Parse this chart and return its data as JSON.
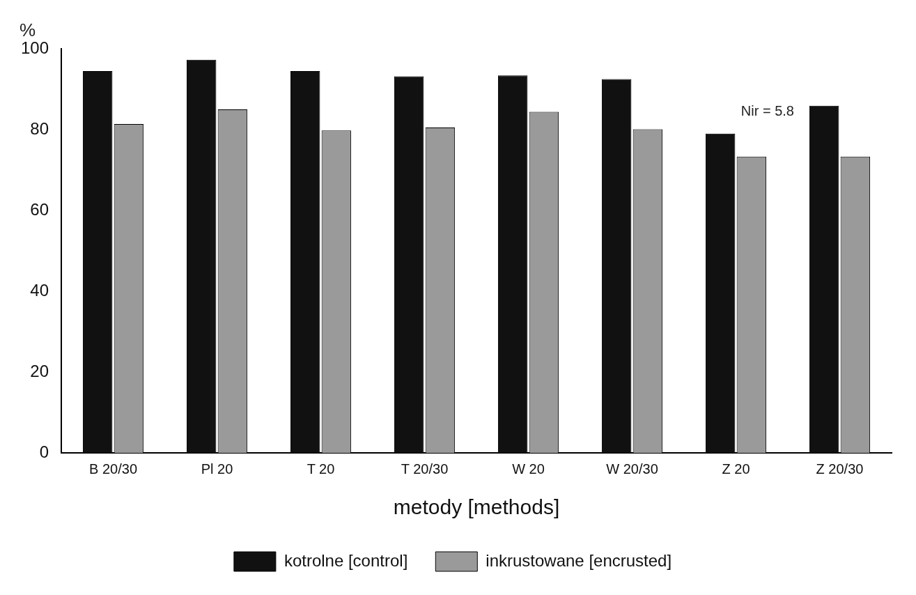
{
  "chart_data": {
    "type": "bar",
    "ylabel": "%",
    "xlabel": "metody [methods]",
    "categories": [
      "B 20/30",
      "Pl 20",
      "T 20",
      "T 20/30",
      "W 20",
      "W 20/30",
      "Z 20",
      "Z 20/30"
    ],
    "series": [
      {
        "name": "kotrolne [control]",
        "color": "#111111",
        "values": [
          94.5,
          97.3,
          94.5,
          93.2,
          93.4,
          92.5,
          79,
          85.9
        ]
      },
      {
        "name": "inkrustowane [encrusted]",
        "color": "#9a9a9a",
        "values": [
          81.4,
          85,
          79.8,
          80.5,
          84.4,
          80.1,
          73.3,
          73.3
        ]
      }
    ],
    "ylim": [
      0,
      100
    ],
    "yticks": [
      0,
      20,
      40,
      60,
      80,
      100
    ],
    "grid": false,
    "legend": "bottom",
    "annotations": [
      "Nir = 5.8"
    ]
  }
}
